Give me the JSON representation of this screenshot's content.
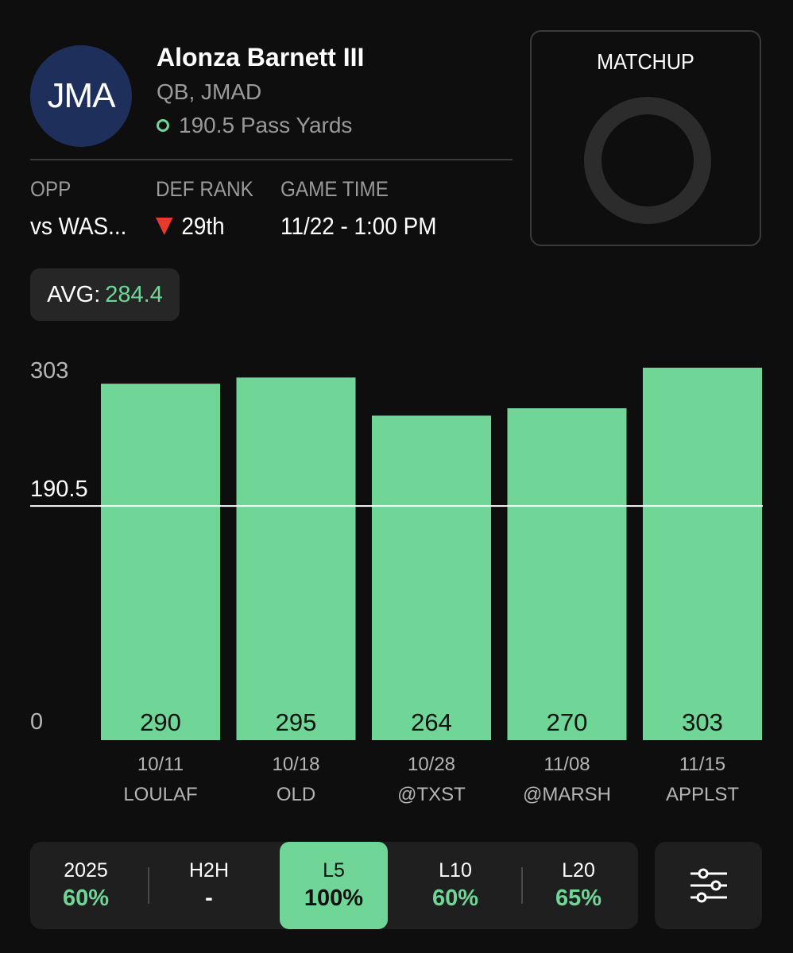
{
  "player": {
    "initials": "JMA",
    "name": "Alonza Barnett III",
    "position": "QB, JMAD",
    "prop": "190.5 Pass Yards"
  },
  "meta": {
    "opp_label": "OPP",
    "opp_value": "vs WAS...",
    "def_rank_label": "DEF RANK",
    "def_rank_value": "29th",
    "game_time_label": "GAME TIME",
    "game_time_value": "11/22 - 1:00 PM"
  },
  "matchup": {
    "label": "MATCHUP"
  },
  "average": {
    "label": "AVG:",
    "value": "284.4"
  },
  "colors": {
    "accent": "#6fd697",
    "background": "#0e0e0e",
    "rank_arrow": "#e8392b",
    "avatar": "#1f2f5c"
  },
  "chart_data": {
    "type": "bar",
    "categories": [
      {
        "date": "10/11",
        "opponent": "LOULAF"
      },
      {
        "date": "10/18",
        "opponent": "OLD"
      },
      {
        "date": "10/28",
        "opponent": "@TXST"
      },
      {
        "date": "11/08",
        "opponent": "@MARSH"
      },
      {
        "date": "11/15",
        "opponent": "APPLST"
      }
    ],
    "values": [
      290,
      295,
      264,
      270,
      303
    ],
    "y_ticks": [
      "303",
      "0"
    ],
    "ylim": [
      0,
      303
    ],
    "line_value": 190.5,
    "line_label": "190.5"
  },
  "filters": [
    {
      "label": "2025",
      "value": "60%"
    },
    {
      "label": "H2H",
      "value": "-"
    },
    {
      "label": "L5",
      "value": "100%",
      "active": true
    },
    {
      "label": "L10",
      "value": "60%"
    },
    {
      "label": "L20",
      "value": "65%"
    }
  ],
  "icons": {
    "settings": "sliders-icon",
    "over": "circle-o-icon",
    "rank": "triangle-down-icon"
  }
}
